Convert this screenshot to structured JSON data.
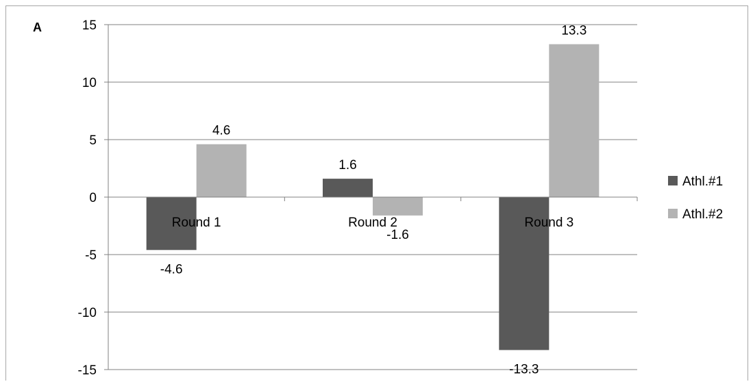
{
  "panel_label": "A",
  "chart_data": {
    "type": "bar",
    "categories": [
      "Round 1",
      "Round 2",
      "Round 3"
    ],
    "series": [
      {
        "name": "Athl.#1",
        "values": [
          -4.6,
          1.6,
          -13.3
        ],
        "color": "#595959"
      },
      {
        "name": "Athl.#2",
        "values": [
          4.6,
          -1.6,
          13.3
        ],
        "color": "#b3b3b3"
      }
    ],
    "ylim": [
      -15,
      15
    ],
    "yticks": [
      15,
      10,
      5,
      0,
      -5,
      -10,
      -15
    ],
    "grid": true,
    "legend_position": "right",
    "data_labels": true
  }
}
